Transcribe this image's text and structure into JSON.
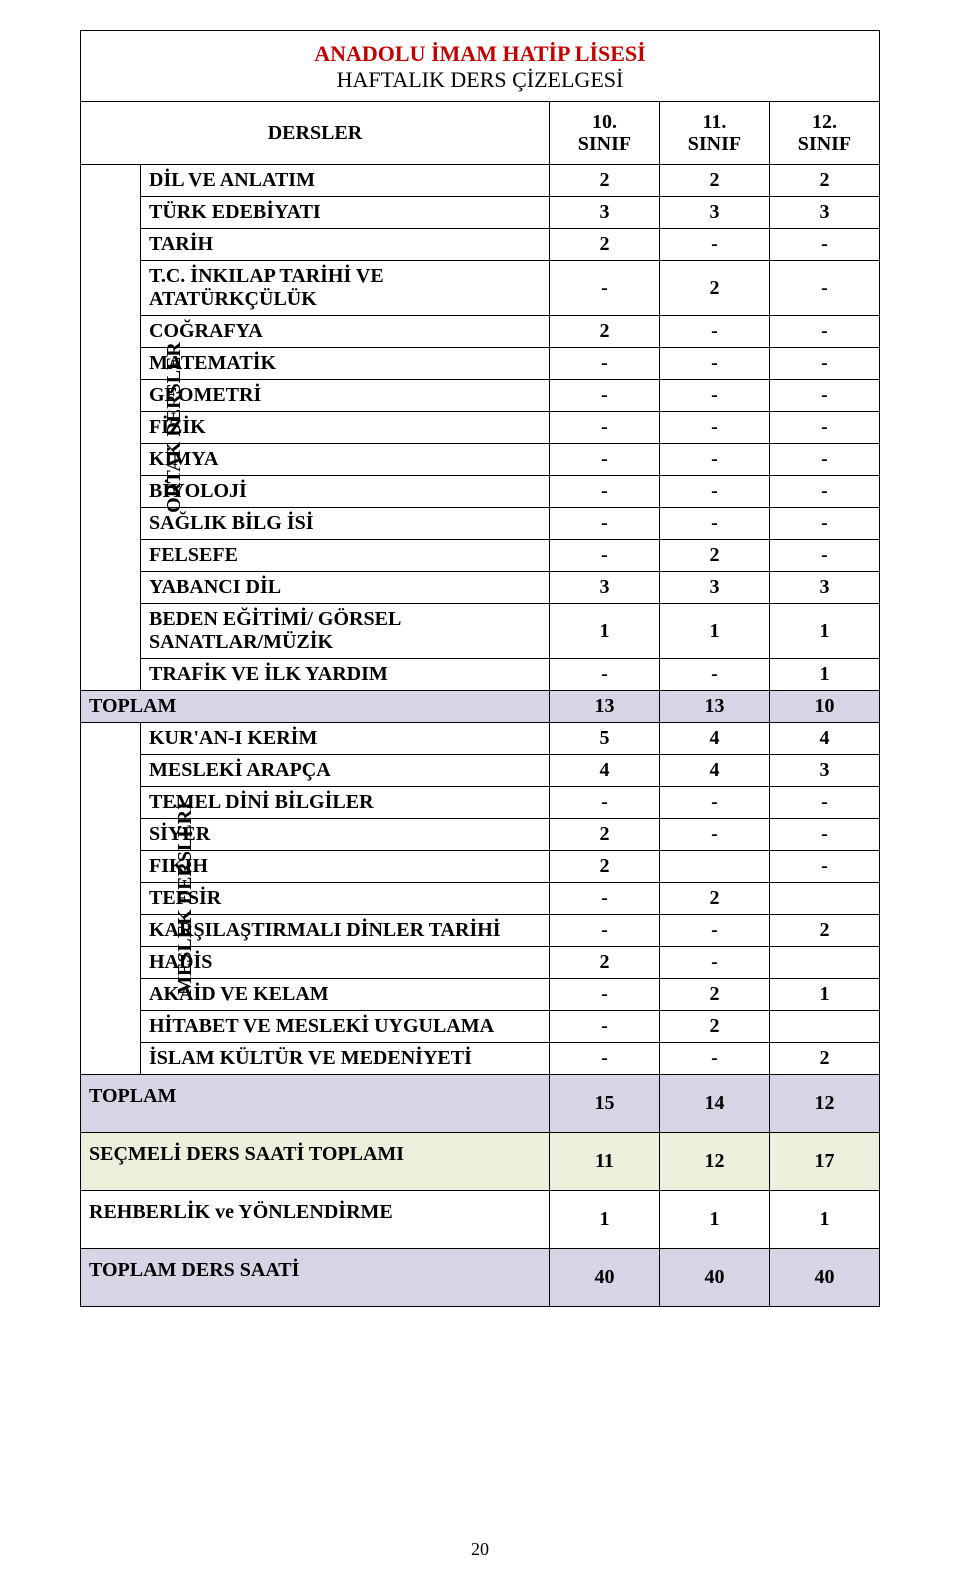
{
  "title": "ANADOLU İMAM HATİP LİSESİ",
  "subtitle": "HAFTALIK DERS ÇİZELGESİ",
  "columns_header_label": "DERSLER",
  "grade_cols": [
    {
      "top": "10.",
      "bottom": "SINIF"
    },
    {
      "top": "11.",
      "bottom": "SINIF"
    },
    {
      "top": "12.",
      "bottom": "SINIF"
    }
  ],
  "section_ortak_label": "ORTAK DERSLER",
  "section_meslek_label": "MESLEK DERSLERİ",
  "ortak_rows": [
    {
      "name": "DİL VE ANLATIM",
      "v": [
        "2",
        "2",
        "2"
      ]
    },
    {
      "name": "TÜRK EDEBİYATI",
      "v": [
        "3",
        "3",
        "3"
      ]
    },
    {
      "name": "TARİH",
      "v": [
        "2",
        "-",
        "-"
      ]
    },
    {
      "name": "T.C. İNKILAP TARİHİ VE ATATÜRKÇÜLÜK",
      "v": [
        "-",
        "2",
        "-"
      ]
    },
    {
      "name": "COĞRAFYA",
      "v": [
        "2",
        "-",
        "-"
      ]
    },
    {
      "name": "MATEMATİK",
      "v": [
        "-",
        "-",
        "-"
      ]
    },
    {
      "name": "GEOMETRİ",
      "v": [
        "-",
        "-",
        "-"
      ]
    },
    {
      "name": "FİZİK",
      "v": [
        "-",
        "-",
        "-"
      ]
    },
    {
      "name": "KİMYA",
      "v": [
        "-",
        "-",
        "-"
      ]
    },
    {
      "name": "BİYOLOJİ",
      "v": [
        "-",
        "-",
        "-"
      ]
    },
    {
      "name": "SAĞLIK BİLG İSİ",
      "v": [
        "-",
        "-",
        "-"
      ]
    },
    {
      "name": "FELSEFE",
      "v": [
        "-",
        "2",
        "-"
      ]
    },
    {
      "name": "YABANCI DİL",
      "v": [
        "3",
        "3",
        "3"
      ]
    },
    {
      "name": "BEDEN EĞİTİMİ/ GÖRSEL SANATLAR/MÜZİK",
      "v": [
        "1",
        "1",
        "1"
      ]
    },
    {
      "name": "TRAFİK VE İLK YARDIM",
      "v": [
        "-",
        "-",
        "1"
      ]
    }
  ],
  "toplam1": {
    "label": "TOPLAM",
    "v": [
      "13",
      "13",
      "10"
    ]
  },
  "meslek_rows": [
    {
      "name": "KUR'AN-I KERİM",
      "v": [
        "5",
        "4",
        "4"
      ]
    },
    {
      "name": "MESLEKİ ARAPÇA",
      "v": [
        "4",
        "4",
        "3"
      ]
    },
    {
      "name": "TEMEL DİNİ BİLGİLER",
      "v": [
        "-",
        "-",
        "-"
      ]
    },
    {
      "name": "SİYER",
      "v": [
        "2",
        "-",
        "-"
      ]
    },
    {
      "name": "FIKIH",
      "v": [
        "2",
        "",
        "-"
      ]
    },
    {
      "name": "TEFSİR",
      "v": [
        "-",
        "2",
        ""
      ]
    },
    {
      "name": "KARŞILAŞTIRMALI DİNLER TARİHİ",
      "v": [
        "-",
        "-",
        "2"
      ]
    },
    {
      "name": "HADİS",
      "v": [
        "2",
        "-",
        ""
      ]
    },
    {
      "name": "AKAİD VE KELAM",
      "v": [
        "-",
        "2",
        "1"
      ]
    },
    {
      "name": "HİTABET VE MESLEKİ UYGULAMA",
      "v": [
        "-",
        "2",
        ""
      ]
    },
    {
      "name": "İSLAM KÜLTÜR VE MEDENİYETİ",
      "v": [
        "-",
        "-",
        "2"
      ]
    }
  ],
  "toplam2": {
    "label": "TOPLAM",
    "v": [
      "15",
      "14",
      "12"
    ]
  },
  "secmeli": {
    "label": "SEÇMELİ DERS SAATİ TOPLAMI",
    "v": [
      "11",
      "12",
      "17"
    ]
  },
  "rehberlik": {
    "label": "REHBERLİK ve YÖNLENDİRME",
    "v": [
      "1",
      "1",
      "1"
    ]
  },
  "toplam_ders_saati": {
    "label": "TOPLAM DERS SAATİ",
    "v": [
      "40",
      "40",
      "40"
    ]
  },
  "page_number": "20",
  "colors": {
    "title": "#c00000",
    "purple_band": "#d9d3e6",
    "green_band": "#eaf0dc",
    "border": "#000000",
    "background": "#ffffff"
  },
  "fonts": {
    "family": "Times New Roman",
    "title_size_pt": 16,
    "body_size_pt": 14
  }
}
